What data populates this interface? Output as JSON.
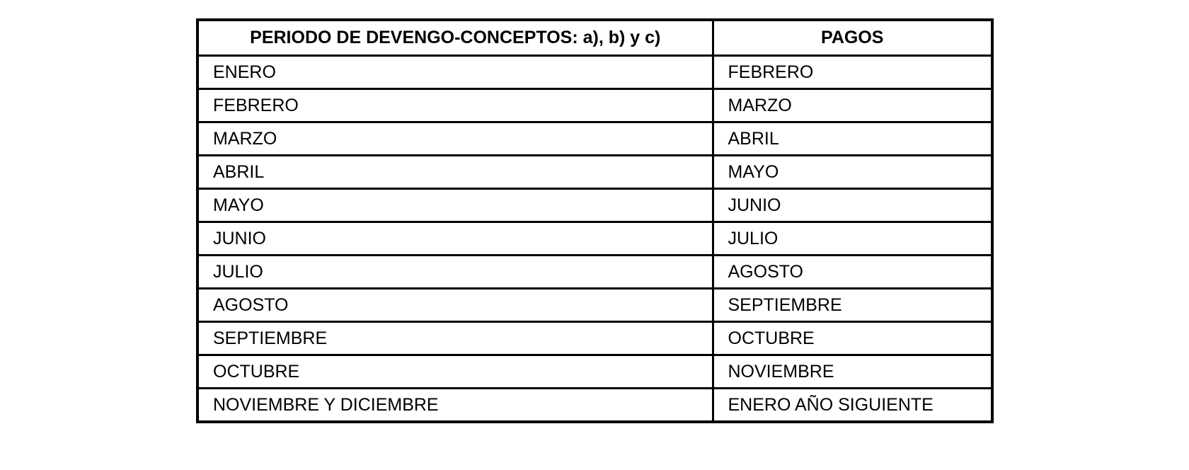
{
  "table": {
    "headers": [
      "PERIODO DE DEVENGO-CONCEPTOS: a), b) y c)",
      "PAGOS"
    ],
    "rows": [
      [
        "ENERO",
        "FEBRERO"
      ],
      [
        "FEBRERO",
        "MARZO"
      ],
      [
        "MARZO",
        "ABRIL"
      ],
      [
        "ABRIL",
        "MAYO"
      ],
      [
        "MAYO",
        "JUNIO"
      ],
      [
        "JUNIO",
        "JULIO"
      ],
      [
        "JULIO",
        "AGOSTO"
      ],
      [
        "AGOSTO",
        "SEPTIEMBRE"
      ],
      [
        "SEPTIEMBRE",
        "OCTUBRE"
      ],
      [
        "OCTUBRE",
        "NOVIEMBRE"
      ],
      [
        "NOVIEMBRE Y DICIEMBRE",
        "ENERO AÑO SIGUIENTE"
      ]
    ],
    "colors": {
      "border": "#000000",
      "text": "#000000",
      "background": "#ffffff"
    }
  }
}
